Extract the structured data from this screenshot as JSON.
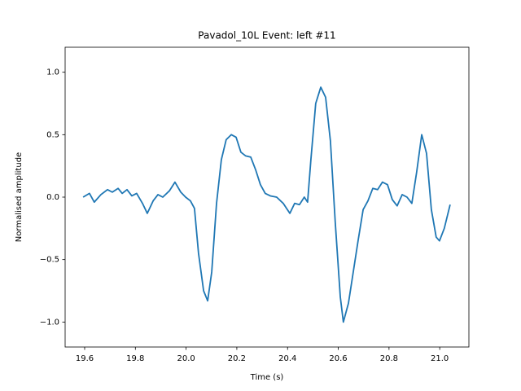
{
  "chart_data": {
    "type": "line",
    "title": "Pavadol_10L Event: left #11",
    "x_label": "Time (s)",
    "y_label": "Normalised amplitude",
    "x": [
      19.594,
      19.619,
      19.638,
      19.664,
      19.69,
      19.709,
      19.732,
      19.748,
      19.767,
      19.786,
      19.805,
      19.828,
      19.847,
      19.87,
      19.889,
      19.908,
      19.934,
      19.956,
      19.979,
      19.998,
      20.017,
      20.033,
      20.049,
      20.069,
      20.085,
      20.101,
      20.12,
      20.139,
      20.158,
      20.178,
      20.197,
      20.216,
      20.235,
      20.255,
      20.274,
      20.293,
      20.312,
      20.332,
      20.357,
      20.383,
      20.409,
      20.428,
      20.447,
      20.466,
      20.479,
      20.492,
      20.511,
      20.531,
      20.55,
      20.569,
      20.588,
      20.608,
      20.62,
      20.64,
      20.659,
      20.678,
      20.698,
      20.717,
      20.736,
      20.755,
      20.774,
      20.794,
      20.813,
      20.832,
      20.852,
      20.871,
      20.89,
      20.909,
      20.929,
      20.948,
      20.967,
      20.986,
      20.999,
      21.018,
      21.041
    ],
    "series": [
      {
        "name": "left #11",
        "color": "#1f77b4",
        "values": [
          0.0,
          0.03,
          -0.04,
          0.02,
          0.06,
          0.04,
          0.07,
          0.03,
          0.06,
          0.01,
          0.03,
          -0.05,
          -0.13,
          -0.03,
          0.02,
          0.0,
          0.05,
          0.12,
          0.04,
          0.0,
          -0.03,
          -0.09,
          -0.45,
          -0.75,
          -0.83,
          -0.6,
          -0.05,
          0.3,
          0.46,
          0.5,
          0.48,
          0.36,
          0.33,
          0.32,
          0.22,
          0.1,
          0.03,
          0.01,
          0.0,
          -0.05,
          -0.13,
          -0.05,
          -0.06,
          0.0,
          -0.04,
          0.3,
          0.75,
          0.88,
          0.8,
          0.45,
          -0.2,
          -0.8,
          -1.0,
          -0.85,
          -0.6,
          -0.35,
          -0.1,
          -0.03,
          0.07,
          0.06,
          0.12,
          0.1,
          -0.02,
          -0.07,
          0.02,
          0.0,
          -0.05,
          0.2,
          0.5,
          0.35,
          -0.1,
          -0.32,
          -0.35,
          -0.25,
          -0.06
        ]
      }
    ],
    "xlim": [
      19.523,
      21.115
    ],
    "ylim": [
      -1.2,
      1.2
    ],
    "xticks": [
      19.6,
      19.8,
      {
        "value": 20,
        "label": "20.0"
      },
      20.2,
      20.4,
      20.6,
      20.8,
      {
        "value": 21,
        "label": "21.0"
      }
    ],
    "yticks": [
      {
        "value": 1,
        "label": "1.0"
      },
      0.5,
      {
        "value": 0,
        "label": "0.0"
      },
      {
        "value": -0.5,
        "label": "−0.5"
      },
      {
        "value": -1,
        "label": "−1.0"
      }
    ],
    "grid": false
  }
}
